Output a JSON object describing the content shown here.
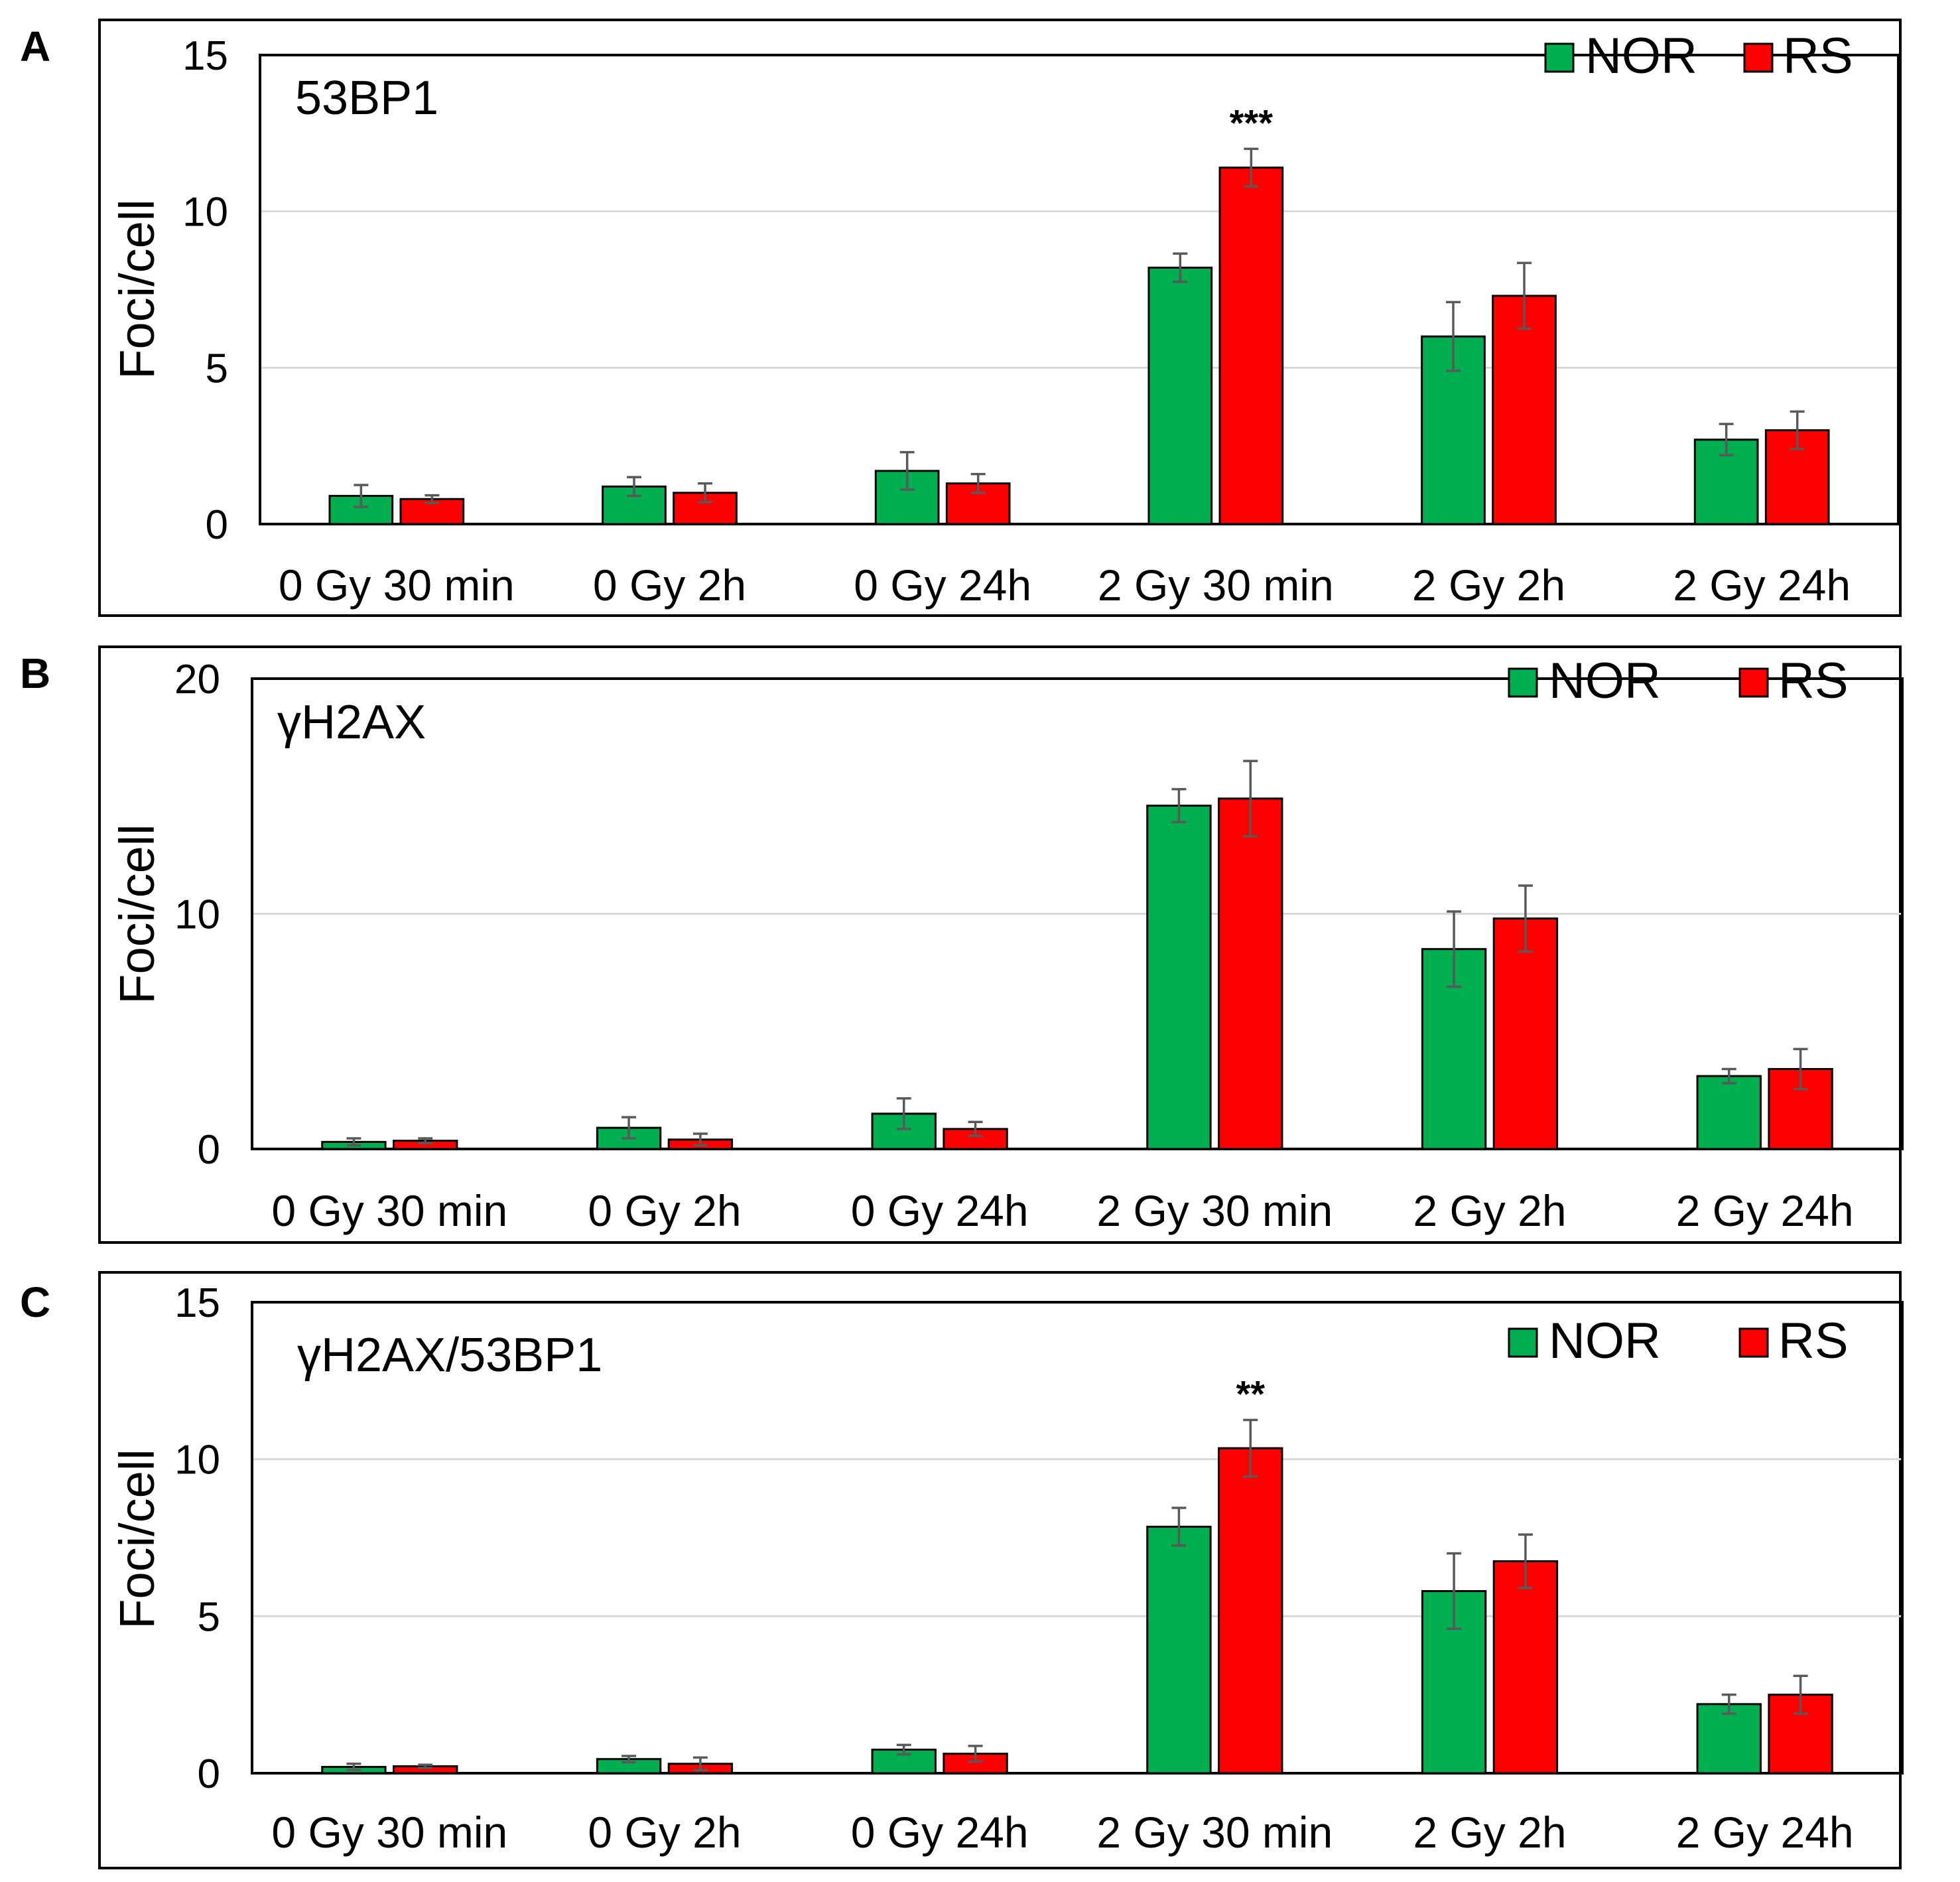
{
  "colors": {
    "nor": "#00b050",
    "rs": "#ff0000",
    "error": "#595959",
    "grid": "#d9d9d9",
    "frame": "#000000"
  },
  "chart_data": [
    {
      "type": "bar",
      "panel": "A",
      "title": "53BP1",
      "ylabel": "Foci/cell",
      "ylim": [
        0,
        15
      ],
      "yticks": [
        0,
        5,
        10,
        15
      ],
      "categories": [
        "0 Gy 30 min",
        "0 Gy 2h",
        "0 Gy 24h",
        "2 Gy 30 min",
        "2 Gy 2h",
        "2 Gy 24h"
      ],
      "series": [
        {
          "name": "NOR",
          "values": [
            0.9,
            1.2,
            1.7,
            8.2,
            6.0,
            2.7
          ],
          "errors": [
            0.35,
            0.3,
            0.6,
            0.45,
            1.1,
            0.5
          ]
        },
        {
          "name": "RS",
          "values": [
            0.8,
            1.0,
            1.3,
            11.4,
            7.3,
            3.0
          ],
          "errors": [
            0.12,
            0.3,
            0.3,
            0.6,
            1.05,
            0.6
          ]
        }
      ],
      "annotations": [
        {
          "category": "2 Gy 30 min",
          "series": "RS",
          "text": "***"
        }
      ]
    },
    {
      "type": "bar",
      "panel": "B",
      "title": "γH2AX",
      "ylabel": "Foci/cell",
      "ylim": [
        0,
        20
      ],
      "yticks": [
        0,
        10,
        20
      ],
      "categories": [
        "0 Gy 30 min",
        "0 Gy 2h",
        "0 Gy 24h",
        "2 Gy 30 min",
        "2 Gy 2h",
        "2 Gy 24h"
      ],
      "series": [
        {
          "name": "NOR",
          "values": [
            0.3,
            0.9,
            1.5,
            14.6,
            8.5,
            3.1
          ],
          "errors": [
            0.15,
            0.45,
            0.65,
            0.7,
            1.6,
            0.3
          ]
        },
        {
          "name": "RS",
          "values": [
            0.35,
            0.4,
            0.85,
            14.9,
            9.8,
            3.4
          ],
          "errors": [
            0.1,
            0.25,
            0.3,
            1.6,
            1.4,
            0.85
          ]
        }
      ],
      "annotations": []
    },
    {
      "type": "bar",
      "panel": "C",
      "title": "γH2AX/53BP1",
      "ylabel": "Foci/cell",
      "ylim": [
        0,
        15
      ],
      "yticks": [
        0,
        5,
        10,
        15
      ],
      "categories": [
        "0 Gy 30 min",
        "0 Gy 2h",
        "0 Gy 24h",
        "2 Gy 30 min",
        "2 Gy 2h",
        "2 Gy 24h"
      ],
      "series": [
        {
          "name": "NOR",
          "values": [
            0.2,
            0.45,
            0.75,
            7.85,
            5.8,
            2.2
          ],
          "errors": [
            0.1,
            0.1,
            0.15,
            0.6,
            1.2,
            0.3
          ]
        },
        {
          "name": "RS",
          "values": [
            0.22,
            0.3,
            0.62,
            10.35,
            6.75,
            2.5
          ],
          "errors": [
            0.05,
            0.2,
            0.25,
            0.9,
            0.85,
            0.6
          ]
        }
      ],
      "annotations": [
        {
          "category": "2 Gy 30 min",
          "series": "RS",
          "text": "**"
        }
      ]
    }
  ]
}
